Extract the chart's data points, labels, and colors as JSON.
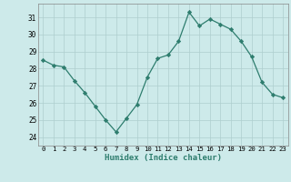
{
  "x": [
    0,
    1,
    2,
    3,
    4,
    5,
    6,
    7,
    8,
    9,
    10,
    11,
    12,
    13,
    14,
    15,
    16,
    17,
    18,
    19,
    20,
    21,
    22,
    23
  ],
  "y": [
    28.5,
    28.2,
    28.1,
    27.3,
    26.6,
    25.8,
    25.0,
    24.3,
    25.1,
    25.9,
    27.5,
    28.6,
    28.8,
    29.6,
    31.3,
    30.5,
    30.9,
    30.6,
    30.3,
    29.6,
    28.7,
    27.2,
    26.5,
    26.3
  ],
  "xlabel": "Humidex (Indice chaleur)",
  "ylim": [
    23.5,
    31.8
  ],
  "xlim": [
    -0.5,
    23.5
  ],
  "yticks": [
    24,
    25,
    26,
    27,
    28,
    29,
    30,
    31
  ],
  "xticks": [
    0,
    1,
    2,
    3,
    4,
    5,
    6,
    7,
    8,
    9,
    10,
    11,
    12,
    13,
    14,
    15,
    16,
    17,
    18,
    19,
    20,
    21,
    22,
    23
  ],
  "line_color": "#2e7d6e",
  "marker_color": "#2e7d6e",
  "bg_color": "#cdeaea",
  "grid_color": "#aecece"
}
